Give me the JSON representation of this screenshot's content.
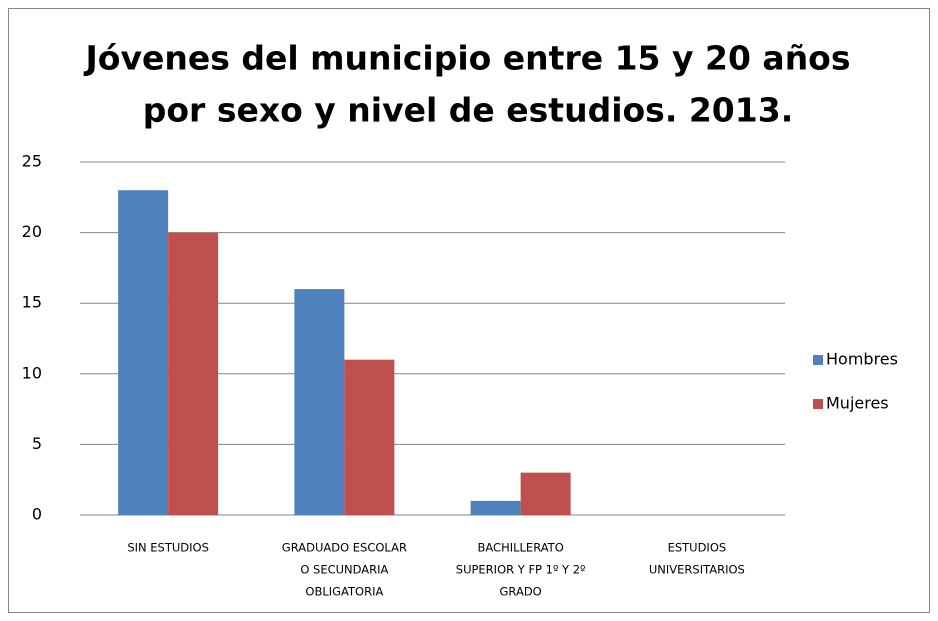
{
  "chart_data": {
    "type": "bar",
    "title": [
      "Jóvenes del municipio entre 15 y 20 años",
      "por sexo y nivel de estudios. 2013."
    ],
    "categories": [
      [
        "SIN ESTUDIOS"
      ],
      [
        "GRADUADO ESCOLAR",
        "O SECUNDARIA",
        "OBLIGATORIA"
      ],
      [
        "BACHILLERATO",
        "SUPERIOR Y FP 1º Y 2º",
        "GRADO"
      ],
      [
        "ESTUDIOS",
        "UNIVERSITARIOS"
      ]
    ],
    "series": [
      {
        "name": "Hombres",
        "color": "#4f81bd",
        "values": [
          23,
          16,
          1,
          0
        ]
      },
      {
        "name": "Mujeres",
        "color": "#c0504d",
        "values": [
          20,
          11,
          3,
          0
        ]
      }
    ],
    "ylim": [
      0,
      25
    ],
    "yticks": [
      0,
      5,
      10,
      15,
      20,
      25
    ],
    "grid": true,
    "legend": "right"
  }
}
